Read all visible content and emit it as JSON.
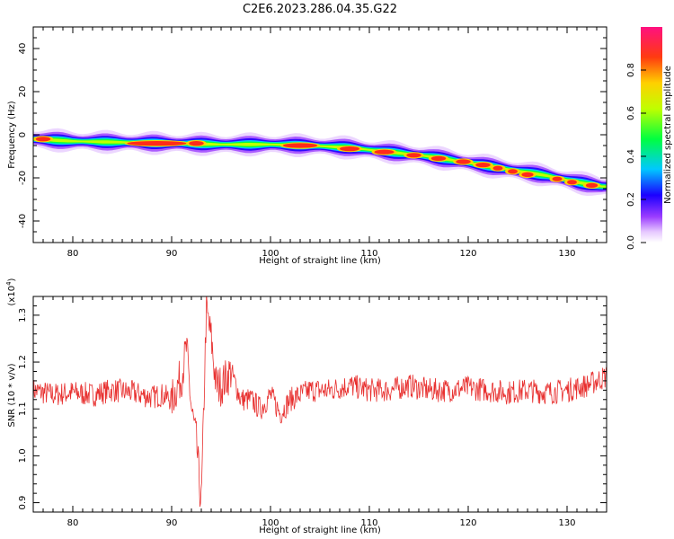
{
  "title": "C2E6.2023.286.04.35.G22",
  "chart_data": [
    {
      "type": "heatmap",
      "xlabel": "Height of straight line (km)",
      "ylabel": "Frequency (Hz)",
      "xlim": [
        76,
        134
      ],
      "ylim": [
        -50,
        50
      ],
      "xticks": [
        80,
        90,
        100,
        110,
        120,
        130
      ],
      "yticks": [
        -40,
        -20,
        0,
        20,
        40
      ],
      "colorbar": {
        "label": "Normalized spectral amplitude",
        "range": [
          0,
          1
        ],
        "ticks": [
          "0.0",
          "0.2",
          "0.4",
          "0.6",
          "0.8"
        ]
      },
      "ridge": {
        "x": [
          76,
          80,
          85,
          90,
          95,
          100,
          104,
          108,
          112,
          116,
          120,
          124,
          128,
          131,
          133.5
        ],
        "y": [
          -2,
          -3,
          -3.5,
          -4,
          -4.5,
          -4.5,
          -5,
          -6,
          -8,
          -10,
          -13,
          -16,
          -19,
          -22,
          -24
        ]
      },
      "hot_spots": [
        {
          "x": 77,
          "y": -2,
          "w": 1.5
        },
        {
          "x": 88.5,
          "y": -4,
          "w": 6
        },
        {
          "x": 92.5,
          "y": -4,
          "w": 1.5
        },
        {
          "x": 103,
          "y": -5,
          "w": 3.5
        },
        {
          "x": 108,
          "y": -6.5,
          "w": 2
        },
        {
          "x": 111.5,
          "y": -8,
          "w": 2
        },
        {
          "x": 114.5,
          "y": -9.5,
          "w": 1.5
        },
        {
          "x": 117,
          "y": -11,
          "w": 1.5
        },
        {
          "x": 119.5,
          "y": -12.5,
          "w": 1.5
        },
        {
          "x": 121.5,
          "y": -14,
          "w": 1.5
        },
        {
          "x": 123,
          "y": -15.5,
          "w": 1
        },
        {
          "x": 124.5,
          "y": -17,
          "w": 1
        },
        {
          "x": 126,
          "y": -18.5,
          "w": 1.2
        },
        {
          "x": 129,
          "y": -20.5,
          "w": 1
        },
        {
          "x": 130.5,
          "y": -22,
          "w": 1
        },
        {
          "x": 132.5,
          "y": -23.5,
          "w": 1.2
        }
      ]
    },
    {
      "type": "line",
      "xlabel": "Height of straight line (km)",
      "ylabel": "SNR (10 * v/v)",
      "scale_label": "(x10",
      "scale_exp": "4",
      "scale_close": ")",
      "xlim": [
        76,
        134
      ],
      "ylim": [
        8800,
        13400
      ],
      "xticks": [
        80,
        90,
        100,
        110,
        120,
        130
      ],
      "yticks": [
        9000,
        10000,
        11000,
        12000,
        13000
      ],
      "ytick_labels": [
        "0.9",
        "1.0",
        "1.1",
        "1.2",
        "1.3"
      ],
      "series": [
        {
          "color": "#e8302f",
          "x": [
            76,
            78,
            80,
            82,
            84,
            86,
            88,
            89,
            90,
            91,
            91.5,
            92,
            92.5,
            93,
            93.5,
            94,
            94.5,
            95,
            96,
            97,
            98,
            99,
            100,
            101,
            102,
            104,
            106,
            108,
            110,
            112,
            114,
            116,
            118,
            120,
            122,
            124,
            126,
            128,
            130,
            132,
            134
          ],
          "y": [
            11400,
            11300,
            11350,
            11300,
            11400,
            11350,
            11250,
            11300,
            11200,
            11700,
            12300,
            11000,
            10300,
            8900,
            13100,
            12500,
            11500,
            11500,
            11800,
            11200,
            11200,
            11000,
            11300,
            10900,
            11200,
            11400,
            11400,
            11500,
            11400,
            11400,
            11500,
            11400,
            11400,
            11450,
            11400,
            11350,
            11400,
            11350,
            11400,
            11500,
            11700
          ]
        }
      ]
    }
  ]
}
